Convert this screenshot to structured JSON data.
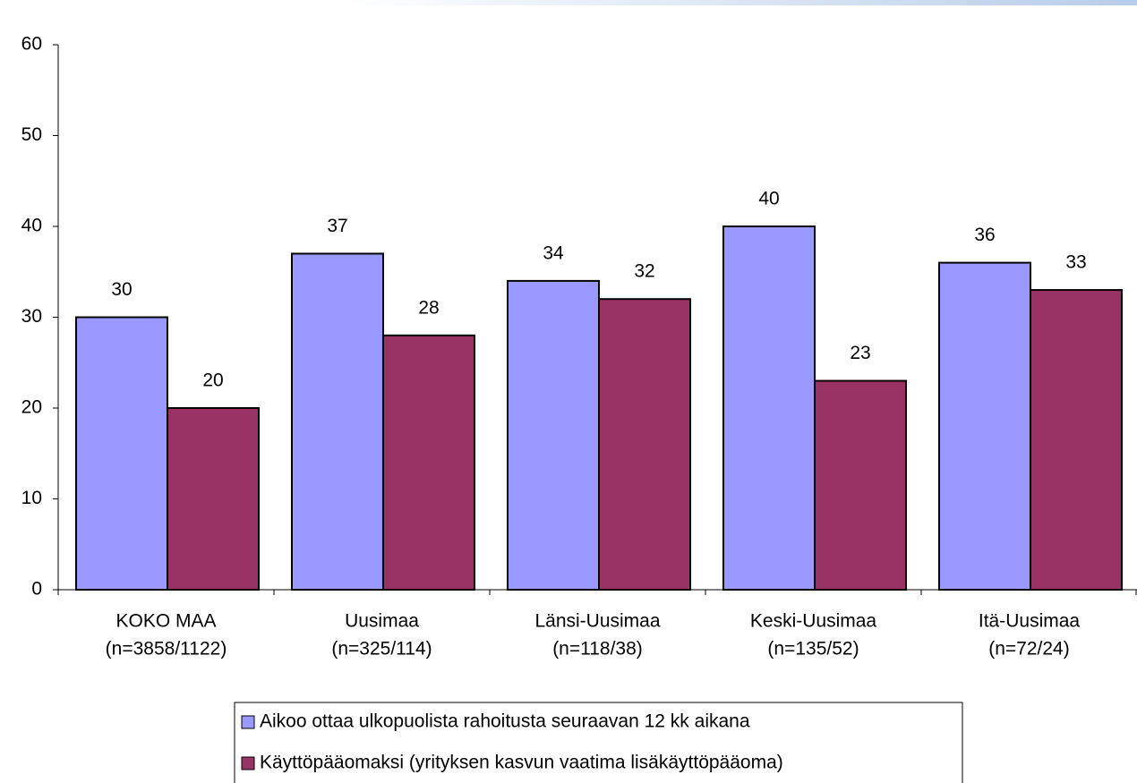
{
  "chart_data": {
    "type": "bar",
    "categories": [
      [
        "KOKO MAA",
        "(n=3858/1122)"
      ],
      [
        "Uusimaa",
        "(n=325/114)"
      ],
      [
        "Länsi-Uusimaa",
        "(n=118/38)"
      ],
      [
        "Keski-Uusimaa",
        "(n=135/52)"
      ],
      [
        "Itä-Uusimaa",
        "(n=72/24)"
      ]
    ],
    "series": [
      {
        "name": "Aikoo ottaa ulkopuolista rahoitusta seuraavan 12 kk aikana",
        "color": "#9999ff",
        "values": [
          30,
          37,
          34,
          40,
          36
        ]
      },
      {
        "name": "Käyttöpääomaksi (yrityksen kasvun vaatima lisäkäyttöpääoma)",
        "color": "#993366",
        "values": [
          20,
          28,
          32,
          23,
          33
        ]
      }
    ],
    "ylim": [
      0,
      60
    ],
    "yticks": [
      0,
      10,
      20,
      30,
      40,
      50,
      60
    ],
    "legend": "bottom"
  }
}
